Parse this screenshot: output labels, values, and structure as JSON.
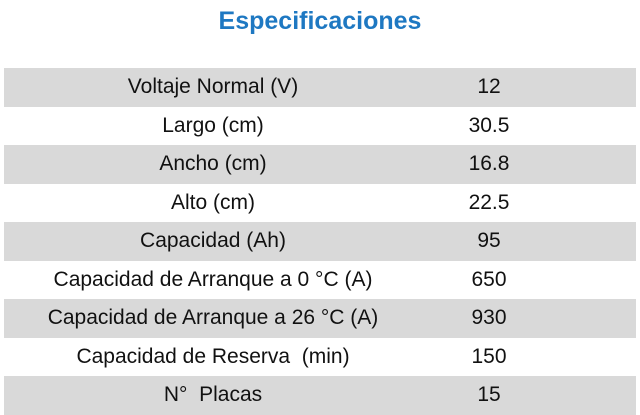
{
  "title": "Especificaciones",
  "table": {
    "rows": [
      [
        "Voltaje Normal (V)",
        "12"
      ],
      [
        "Largo (cm)",
        "30.5"
      ],
      [
        "Ancho (cm)",
        "16.8"
      ],
      [
        "Alto (cm)",
        "22.5"
      ],
      [
        "Capacidad (Ah)",
        "95"
      ],
      [
        "Capacidad de Arranque a 0 °C (A)",
        "650"
      ],
      [
        "Capacidad de Arranque a 26 °C (A)",
        "930"
      ],
      [
        "Capacidad de Reserva  (min)",
        "150"
      ],
      [
        "N°  Placas",
        "15"
      ]
    ]
  }
}
